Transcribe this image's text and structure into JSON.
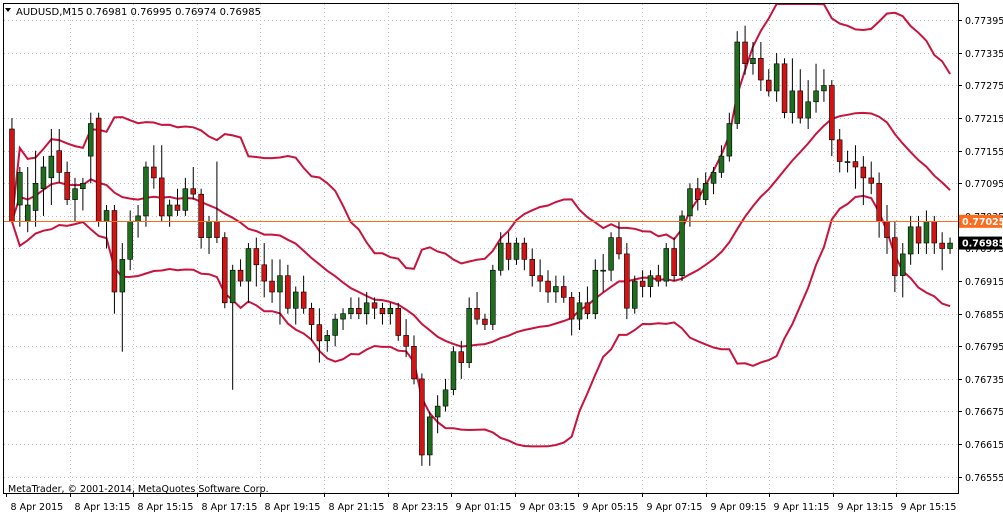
{
  "header": {
    "symbol": "AUDUSD,M15",
    "ohlc": "0.76981 0.76995 0.76974 0.76985",
    "dropdown_icon": "triangle-down-icon"
  },
  "footer": {
    "copyright": "MetaTrader, © 2001-2014, MetaQuotes Software Corp."
  },
  "colors": {
    "bull_body": "#1e6e1e",
    "bear_body": "#d21414",
    "bands": "#c8143c",
    "line_level": "#ff6a1a",
    "grid": "#c0c0c0",
    "frame": "#000000"
  },
  "chart_data": {
    "type": "candlestick",
    "title": "AUDUSD,M15",
    "ylim": [
      0.76525,
      0.77425
    ],
    "y_ticks": [
      "0.77395",
      "0.77335",
      "0.77275",
      "0.77215",
      "0.77155",
      "0.77095",
      "0.77035",
      "0.76975",
      "0.76915",
      "0.76855",
      "0.76795",
      "0.76735",
      "0.76675",
      "0.76615",
      "0.76555"
    ],
    "x_ticks": [
      "8 Apr 2015",
      "8 Apr 13:15",
      "8 Apr 15:15",
      "8 Apr 17:15",
      "8 Apr 19:15",
      "8 Apr 21:15",
      "8 Apr 23:15",
      "9 Apr 01:15",
      "9 Apr 03:15",
      "9 Apr 05:15",
      "9 Apr 07:15",
      "9 Apr 09:15",
      "9 Apr 11:15",
      "9 Apr 13:15",
      "9 Apr 15:15"
    ],
    "horizontal_line": {
      "value": "0.77025",
      "color": "#ff6a1a"
    },
    "current_price": {
      "value": "0.76985"
    },
    "indicator": "bollinger_bands",
    "candles": [
      [
        0.77195,
        0.77215,
        0.77025,
        0.77025
      ],
      [
        0.77055,
        0.77125,
        0.77015,
        0.77115
      ],
      [
        0.77025,
        0.77125,
        0.77005,
        0.77055
      ],
      [
        0.77045,
        0.77155,
        0.77015,
        0.77095
      ],
      [
        0.77085,
        0.77145,
        0.77035,
        0.77125
      ],
      [
        0.77105,
        0.77195,
        0.77055,
        0.77145
      ],
      [
        0.77155,
        0.77195,
        0.77095,
        0.77115
      ],
      [
        0.77115,
        0.77135,
        0.77055,
        0.77065
      ],
      [
        0.77065,
        0.77105,
        0.77025,
        0.77085
      ],
      [
        0.77085,
        0.77105,
        0.77045,
        0.77095
      ],
      [
        0.77145,
        0.77225,
        0.77095,
        0.77205
      ],
      [
        0.77215,
        0.77225,
        0.77015,
        0.77025
      ],
      [
        0.77025,
        0.77055,
        0.76975,
        0.77045
      ],
      [
        0.77045,
        0.77055,
        0.76855,
        0.76895
      ],
      [
        0.76895,
        0.76985,
        0.76785,
        0.76955
      ],
      [
        0.76955,
        0.77045,
        0.76935,
        0.77025
      ],
      [
        0.77025,
        0.77055,
        0.76995,
        0.77035
      ],
      [
        0.77035,
        0.77135,
        0.77015,
        0.77125
      ],
      [
        0.77125,
        0.77165,
        0.77085,
        0.77105
      ],
      [
        0.77105,
        0.77165,
        0.77025,
        0.77035
      ],
      [
        0.77035,
        0.77065,
        0.77015,
        0.77055
      ],
      [
        0.77055,
        0.77085,
        0.77035,
        0.77045
      ],
      [
        0.77045,
        0.77105,
        0.77035,
        0.77085
      ],
      [
        0.77085,
        0.77125,
        0.77065,
        0.77075
      ],
      [
        0.77075,
        0.77085,
        0.76975,
        0.76995
      ],
      [
        0.76995,
        0.77035,
        0.76965,
        0.77025
      ],
      [
        0.77025,
        0.77135,
        0.76985,
        0.76995
      ],
      [
        0.76995,
        0.77005,
        0.76865,
        0.76875
      ],
      [
        0.76875,
        0.76945,
        0.76715,
        0.76935
      ],
      [
        0.76935,
        0.76955,
        0.76905,
        0.76915
      ],
      [
        0.76915,
        0.76985,
        0.76875,
        0.76975
      ],
      [
        0.76975,
        0.76995,
        0.76905,
        0.76945
      ],
      [
        0.76945,
        0.76985,
        0.76885,
        0.76915
      ],
      [
        0.76915,
        0.76955,
        0.76875,
        0.76895
      ],
      [
        0.76895,
        0.76955,
        0.76835,
        0.76925
      ],
      [
        0.76925,
        0.76945,
        0.76855,
        0.76865
      ],
      [
        0.76865,
        0.76905,
        0.76835,
        0.76895
      ],
      [
        0.76895,
        0.76925,
        0.76855,
        0.76865
      ],
      [
        0.76865,
        0.76875,
        0.76805,
        0.76835
      ],
      [
        0.76835,
        0.76865,
        0.76765,
        0.76805
      ],
      [
        0.76805,
        0.76825,
        0.76785,
        0.76815
      ],
      [
        0.76815,
        0.76855,
        0.76795,
        0.76845
      ],
      [
        0.76845,
        0.76865,
        0.76825,
        0.76855
      ],
      [
        0.76855,
        0.76885,
        0.76845,
        0.76865
      ],
      [
        0.76865,
        0.76885,
        0.76845,
        0.76855
      ],
      [
        0.76855,
        0.76895,
        0.76835,
        0.76875
      ],
      [
        0.76875,
        0.76885,
        0.76845,
        0.76865
      ],
      [
        0.76865,
        0.76875,
        0.76835,
        0.76855
      ],
      [
        0.76855,
        0.76875,
        0.76835,
        0.76865
      ],
      [
        0.76865,
        0.76875,
        0.76805,
        0.76815
      ],
      [
        0.76815,
        0.76845,
        0.76775,
        0.76795
      ],
      [
        0.76795,
        0.76815,
        0.76725,
        0.76735
      ],
      [
        0.76735,
        0.76745,
        0.76575,
        0.76595
      ],
      [
        0.76595,
        0.76675,
        0.76575,
        0.76665
      ],
      [
        0.76665,
        0.76705,
        0.76635,
        0.76685
      ],
      [
        0.76685,
        0.76735,
        0.76675,
        0.76715
      ],
      [
        0.76715,
        0.76795,
        0.76705,
        0.76785
      ],
      [
        0.76785,
        0.76805,
        0.76735,
        0.76765
      ],
      [
        0.76765,
        0.76885,
        0.76755,
        0.76865
      ],
      [
        0.76865,
        0.76895,
        0.76835,
        0.76845
      ],
      [
        0.76845,
        0.76855,
        0.76825,
        0.76835
      ],
      [
        0.76835,
        0.76945,
        0.76825,
        0.76935
      ],
      [
        0.76935,
        0.77005,
        0.76925,
        0.76985
      ],
      [
        0.76985,
        0.77005,
        0.76935,
        0.76955
      ],
      [
        0.76955,
        0.76995,
        0.76945,
        0.76985
      ],
      [
        0.76985,
        0.76995,
        0.76935,
        0.76955
      ],
      [
        0.76955,
        0.76975,
        0.76905,
        0.76925
      ],
      [
        0.76925,
        0.76955,
        0.76895,
        0.76915
      ],
      [
        0.76915,
        0.76935,
        0.76875,
        0.76895
      ],
      [
        0.76895,
        0.76925,
        0.76875,
        0.76905
      ],
      [
        0.76905,
        0.76925,
        0.76875,
        0.76885
      ],
      [
        0.76885,
        0.76895,
        0.76815,
        0.76845
      ],
      [
        0.76845,
        0.76895,
        0.76825,
        0.76875
      ],
      [
        0.76875,
        0.76905,
        0.76845,
        0.76855
      ],
      [
        0.76855,
        0.76955,
        0.76845,
        0.76935
      ],
      [
        0.76935,
        0.76965,
        0.76895,
        0.76935
      ],
      [
        0.76935,
        0.77005,
        0.76915,
        0.76995
      ],
      [
        0.76995,
        0.77025,
        0.76955,
        0.76965
      ],
      [
        0.76965,
        0.76985,
        0.76845,
        0.76865
      ],
      [
        0.76865,
        0.76925,
        0.76855,
        0.76915
      ],
      [
        0.76915,
        0.76935,
        0.76885,
        0.76905
      ],
      [
        0.76905,
        0.76935,
        0.76885,
        0.76925
      ],
      [
        0.76925,
        0.76945,
        0.76905,
        0.76915
      ],
      [
        0.76915,
        0.76985,
        0.76905,
        0.76975
      ],
      [
        0.76975,
        0.76995,
        0.76915,
        0.76925
      ],
      [
        0.76925,
        0.77045,
        0.76915,
        0.77035
      ],
      [
        0.77035,
        0.77095,
        0.77015,
        0.77085
      ],
      [
        0.77085,
        0.77105,
        0.77045,
        0.77065
      ],
      [
        0.77065,
        0.77115,
        0.77055,
        0.77095
      ],
      [
        0.77095,
        0.77125,
        0.77075,
        0.77115
      ],
      [
        0.77115,
        0.77165,
        0.77105,
        0.77145
      ],
      [
        0.77145,
        0.77225,
        0.77135,
        0.77205
      ],
      [
        0.77205,
        0.77375,
        0.77195,
        0.77355
      ],
      [
        0.77355,
        0.77385,
        0.77295,
        0.77315
      ],
      [
        0.77315,
        0.77355,
        0.77295,
        0.77325
      ],
      [
        0.77325,
        0.77355,
        0.77265,
        0.77285
      ],
      [
        0.77285,
        0.77305,
        0.77255,
        0.77265
      ],
      [
        0.77265,
        0.77335,
        0.77245,
        0.77315
      ],
      [
        0.77315,
        0.77325,
        0.77215,
        0.77225
      ],
      [
        0.77225,
        0.77325,
        0.77205,
        0.77265
      ],
      [
        0.77265,
        0.77305,
        0.77205,
        0.77215
      ],
      [
        0.77215,
        0.77285,
        0.77195,
        0.77245
      ],
      [
        0.77245,
        0.77315,
        0.77225,
        0.77265
      ],
      [
        0.77265,
        0.77305,
        0.77245,
        0.77275
      ],
      [
        0.77275,
        0.77285,
        0.77145,
        0.77175
      ],
      [
        0.77175,
        0.77195,
        0.77115,
        0.77135
      ],
      [
        0.77135,
        0.77155,
        0.77115,
        0.77135
      ],
      [
        0.77135,
        0.77165,
        0.77085,
        0.77125
      ],
      [
        0.77125,
        0.77145,
        0.77055,
        0.77105
      ],
      [
        0.77105,
        0.77135,
        0.77075,
        0.77095
      ],
      [
        0.77095,
        0.77115,
        0.76995,
        0.77025
      ],
      [
        0.77025,
        0.77055,
        0.76965,
        0.76995
      ],
      [
        0.76995,
        0.77025,
        0.76895,
        0.76925
      ],
      [
        0.76925,
        0.76985,
        0.76885,
        0.76965
      ],
      [
        0.76965,
        0.77035,
        0.76945,
        0.77015
      ],
      [
        0.77015,
        0.77035,
        0.76965,
        0.76985
      ],
      [
        0.76985,
        0.77045,
        0.76965,
        0.77025
      ],
      [
        0.77025,
        0.77035,
        0.76965,
        0.76985
      ],
      [
        0.76985,
        0.77005,
        0.76935,
        0.76975
      ],
      [
        0.76975,
        0.76995,
        0.76965,
        0.76985
      ]
    ]
  }
}
